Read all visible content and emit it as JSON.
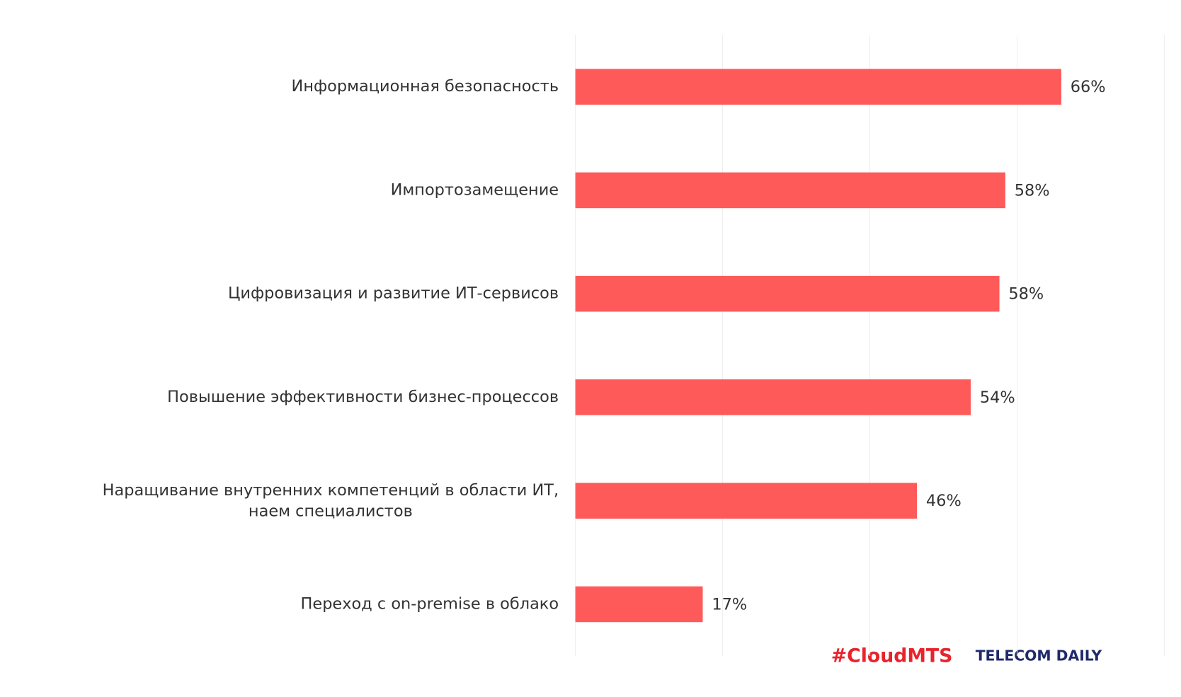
{
  "chart_data": {
    "type": "hbar",
    "categories": [
      "Информационная безопасность",
      "Импортозамещение",
      "Цифровизация и развитие ИТ-сервисов",
      "Повышение эффективности бизнес-процессов",
      "Наращивание внутренних компетенций в области ИТ, наем специалистов",
      "Переход с on-premise в облако"
    ],
    "values": [
      66,
      58.4,
      57.6,
      53.7,
      46.4,
      17.3
    ],
    "value_labels": [
      "66%",
      "58%",
      "58%",
      "54%",
      "46%",
      "17%"
    ],
    "color": "#ff5a5a",
    "xlim": [
      0,
      80
    ],
    "xticks": [
      0,
      20,
      40,
      60,
      80
    ],
    "grid": true
  },
  "logos": [
    "#CloudMTS",
    "TELECOM DAILY"
  ]
}
